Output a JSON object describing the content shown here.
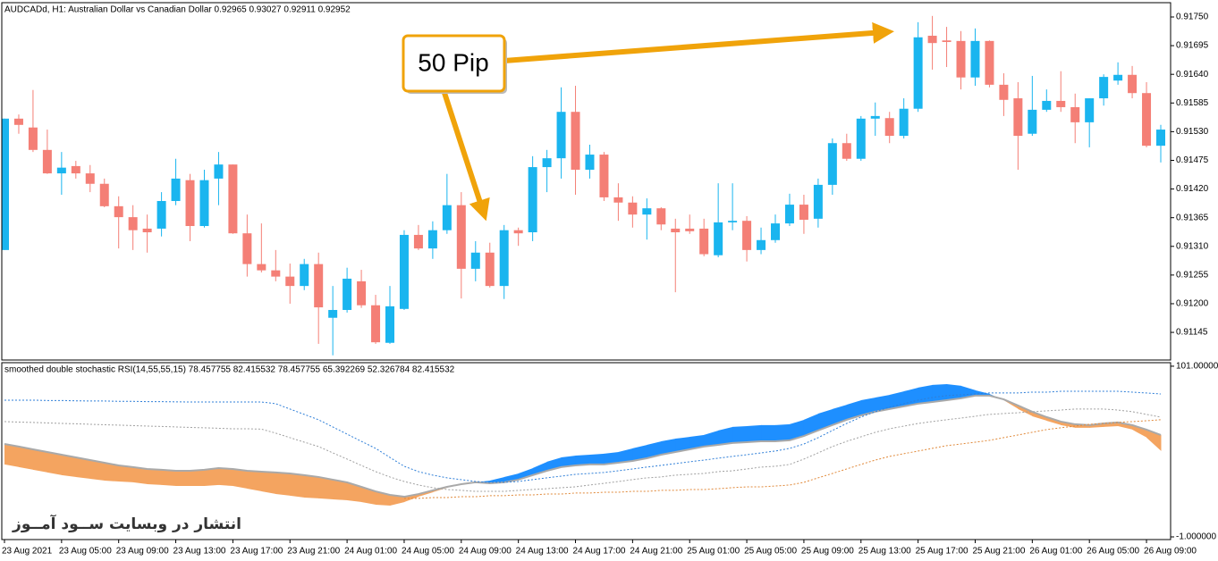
{
  "chart_data": [
    {
      "type": "candlestick",
      "title": "AUDCADd, H1:  Australian Dollar vs Canadian Dollar  0.92965 0.93027 0.92911 0.92952",
      "annotation": "50 Pip",
      "categories": [
        "23 Aug 2021",
        null,
        null,
        null,
        "23 Aug 05:00",
        null,
        null,
        null,
        "23 Aug 09:00",
        null,
        null,
        null,
        "23 Aug 13:00",
        null,
        null,
        null,
        "23 Aug 17:00",
        null,
        null,
        null,
        "23 Aug 21:00",
        null,
        null,
        null,
        "24 Aug 01:00",
        null,
        null,
        null,
        "24 Aug 05:00",
        null,
        null,
        null,
        "24 Aug 09:00",
        null,
        null,
        null,
        "24 Aug 13:00",
        null,
        null,
        null,
        "24 Aug 17:00",
        null,
        null,
        null,
        "24 Aug 21:00",
        null,
        null,
        null,
        "25 Aug 01:00",
        null,
        null,
        null,
        "25 Aug 05:00",
        null,
        null,
        null,
        "25 Aug 09:00",
        null,
        null,
        null,
        "25 Aug 13:00",
        null,
        null,
        null,
        "25 Aug 17:00",
        null,
        null,
        null,
        "25 Aug 21:00",
        null,
        null,
        null,
        "26 Aug 01:00",
        null,
        null,
        null,
        "26 Aug 05:00",
        null,
        null,
        null,
        "26 Aug 09:00",
        null
      ],
      "open": [
        0.91303,
        0.91555,
        0.91538,
        0.91495,
        0.9145,
        0.91464,
        0.9145,
        0.9143,
        0.91387,
        0.91366,
        0.91344,
        0.91344,
        0.91397,
        0.91437,
        0.91349,
        0.9144,
        0.91467,
        0.91335,
        0.91276,
        0.91264,
        0.91252,
        0.91234,
        0.91276,
        0.91173,
        0.91188,
        0.91243,
        0.91197,
        0.91125,
        0.9119,
        0.91332,
        0.91306,
        0.91341,
        0.91389,
        0.91267,
        0.91298,
        0.91234,
        0.91341,
        0.91337,
        0.91462,
        0.91479,
        0.91568,
        0.91457,
        0.91486,
        0.91404,
        0.91394,
        0.91371,
        0.91383,
        0.91344,
        0.91344,
        0.91344,
        0.91293,
        0.91356,
        0.91359,
        0.91303,
        0.91322,
        0.91354,
        0.9139,
        0.91363,
        0.91428,
        0.91508,
        0.91478,
        0.91555,
        0.91556,
        0.91522,
        0.91574,
        0.91714,
        0.91705,
        0.91704,
        0.91634,
        0.91704,
        0.9162,
        0.91594,
        0.91526,
        0.91572,
        0.91589,
        0.91577,
        0.91548,
        0.91594,
        0.91628,
        0.91639,
        0.91604,
        0.91503
      ],
      "high": [
        0.91555,
        0.91563,
        0.9161,
        0.91534,
        0.91491,
        0.91474,
        0.91466,
        0.9144,
        0.91406,
        0.91389,
        0.91371,
        0.91414,
        0.91478,
        0.91449,
        0.91457,
        0.91491,
        0.91467,
        0.91371,
        0.91354,
        0.91303,
        0.91277,
        0.91286,
        0.91298,
        0.91234,
        0.91269,
        0.91265,
        0.91217,
        0.91234,
        0.91341,
        0.91351,
        0.91358,
        0.91449,
        0.91414,
        0.9132,
        0.91317,
        0.91351,
        0.91346,
        0.91483,
        0.91495,
        0.91615,
        0.91618,
        0.91505,
        0.91491,
        0.91431,
        0.91406,
        0.91402,
        0.91385,
        0.91363,
        0.91371,
        0.91363,
        0.91431,
        0.91431,
        0.91368,
        0.91346,
        0.91371,
        0.91411,
        0.91409,
        0.9144,
        0.91517,
        0.91526,
        0.9156,
        0.91586,
        0.91568,
        0.91594,
        0.9174,
        0.91752,
        0.91731,
        0.91723,
        0.91728,
        0.91705,
        0.91642,
        0.91625,
        0.91637,
        0.91611,
        0.91646,
        0.91603,
        0.91594,
        0.9164,
        0.91663,
        0.91656,
        0.91625,
        0.91543
      ],
      "low": [
        0.91303,
        0.91526,
        0.91491,
        0.91449,
        0.91409,
        0.9144,
        0.91414,
        0.91385,
        0.91306,
        0.91303,
        0.91298,
        0.91329,
        0.91389,
        0.9132,
        0.91346,
        0.91389,
        0.91334,
        0.91252,
        0.9126,
        0.91243,
        0.912,
        0.91226,
        0.91123,
        0.91101,
        0.91183,
        0.91192,
        0.91123,
        0.91123,
        0.91188,
        0.91303,
        0.91286,
        0.91334,
        0.9121,
        0.91243,
        0.91231,
        0.91209,
        0.91311,
        0.9132,
        0.91414,
        0.9144,
        0.91409,
        0.9144,
        0.91397,
        0.91359,
        0.91346,
        0.91323,
        0.91341,
        0.91222,
        0.91334,
        0.91291,
        0.91289,
        0.91341,
        0.91281,
        0.91295,
        0.91317,
        0.91349,
        0.91334,
        0.91346,
        0.91409,
        0.91474,
        0.91474,
        0.91522,
        0.91508,
        0.91517,
        0.91568,
        0.91649,
        0.91654,
        0.91611,
        0.91618,
        0.91615,
        0.9156,
        0.91457,
        0.91522,
        0.91568,
        0.91568,
        0.91508,
        0.915,
        0.9158,
        0.9162,
        0.91594,
        0.915,
        0.91471
      ],
      "close": [
        0.91555,
        0.91543,
        0.91495,
        0.9145,
        0.91461,
        0.9145,
        0.9143,
        0.91387,
        0.91366,
        0.91341,
        0.91337,
        0.91397,
        0.9144,
        0.91349,
        0.91437,
        0.91467,
        0.91335,
        0.91276,
        0.91264,
        0.91252,
        0.91234,
        0.91276,
        0.91193,
        0.91188,
        0.91248,
        0.91197,
        0.91126,
        0.91195,
        0.91332,
        0.91306,
        0.91341,
        0.91389,
        0.91267,
        0.91298,
        0.91234,
        0.91341,
        0.91335,
        0.91462,
        0.91479,
        0.91568,
        0.91457,
        0.91486,
        0.91404,
        0.91394,
        0.91371,
        0.91383,
        0.91352,
        0.91337,
        0.91339,
        0.91295,
        0.91356,
        0.91359,
        0.91303,
        0.91322,
        0.91354,
        0.9139,
        0.91361,
        0.91428,
        0.91508,
        0.91478,
        0.91555,
        0.9156,
        0.91522,
        0.91574,
        0.91711,
        0.917,
        0.91702,
        0.91634,
        0.91704,
        0.9162,
        0.91591,
        0.91522,
        0.91572,
        0.91589,
        0.91577,
        0.91548,
        0.91594,
        0.91635,
        0.91639,
        0.91604,
        0.91503,
        0.91534
      ],
      "up_color": "#1ab5ef",
      "down_color": "#f47f76",
      "ylim": [
        0.91092,
        0.91774
      ],
      "yticks": [
        {
          "value": 0.9175,
          "label": "0.91750"
        },
        0.91695,
        {
          "value": 0.9164,
          "label": "0.91640"
        },
        0.91585,
        {
          "value": 0.9153,
          "label": "0.91530"
        },
        0.91475,
        {
          "value": 0.9142,
          "label": "0.91420"
        },
        0.91365,
        {
          "value": 0.9131,
          "label": "0.91310"
        },
        0.91255,
        {
          "value": 0.912,
          "label": "0.91200"
        },
        0.91145
      ]
    },
    {
      "type": "line",
      "title": "smoothed double stochastic RSI(14,55,55,15) 78.457755 82.415532 78.457755 65.392269 52.326784 82.415532",
      "watermark": "انتشار در وبسایت  ســود آمــوز",
      "ylim": [
        -2.6,
        103.1
      ],
      "yticks": [
        {
          "value": 101,
          "label": "101.000000"
        },
        {
          "value": -1,
          "label": "-1.000000"
        }
      ],
      "fill_colors": [
        "#1e8fff",
        "#f4a460"
      ],
      "series": [
        {
          "values": [
            42.3,
            40.7,
            39.1,
            37.5,
            35.9,
            34.8,
            33.7,
            32.6,
            32.1,
            31.6,
            30.5,
            30.0,
            29.4,
            29.4,
            29.4,
            30.0,
            29.4,
            27.8,
            26.2,
            24.6,
            23.6,
            22.5,
            22.0,
            21.4,
            20.9,
            19.8,
            18.2,
            17.7,
            19.8,
            23.0,
            25.7,
            28.4,
            30.5,
            31.6,
            32.6,
            34.8,
            36.9,
            40.1,
            43.9,
            46.5,
            47.6,
            48.1,
            48.7,
            49.7,
            51.9,
            54.0,
            56.1,
            57.7,
            58.8,
            59.9,
            62.6,
            64.7,
            65.2,
            65.8,
            65.8,
            66.3,
            69.0,
            72.7,
            75.4,
            78.0,
            80.7,
            82.3,
            83.9,
            86.0,
            88.2,
            89.8,
            90.3,
            89.3,
            86.6,
            84.4,
            80.7,
            75.4,
            71.1,
            68.4,
            65.8,
            64.2,
            64.2,
            64.7,
            65.2,
            63.1,
            58.3,
            50.3
          ]
        },
        {
          "color": "#a9a9a9",
          "values": [
            54.5,
            53.0,
            51.3,
            49.7,
            48.1,
            46.5,
            44.9,
            43.3,
            41.7,
            40.7,
            39.6,
            39.1,
            38.5,
            38.5,
            39.1,
            40.1,
            39.6,
            38.5,
            38.0,
            37.5,
            36.9,
            35.9,
            34.8,
            33.2,
            31.6,
            28.9,
            26.2,
            24.1,
            23.0,
            24.6,
            26.8,
            28.9,
            30.5,
            31.6,
            31.0,
            31.6,
            33.2,
            35.9,
            38.5,
            40.7,
            41.7,
            42.3,
            42.3,
            43.3,
            44.4,
            46.0,
            48.1,
            49.7,
            51.3,
            53.0,
            54.0,
            55.1,
            55.6,
            56.1,
            56.1,
            56.7,
            59.3,
            62.6,
            65.8,
            69.0,
            71.6,
            73.8,
            75.4,
            77.0,
            78.6,
            79.6,
            80.7,
            81.8,
            83.4,
            83.4,
            81.2,
            77.5,
            73.8,
            70.6,
            67.9,
            66.3,
            65.8,
            66.8,
            67.4,
            65.8,
            63.1,
            59.9
          ]
        },
        {
          "color": "#2f7fd8",
          "dash": true,
          "values": [
            80.7,
            80.7,
            80.7,
            80.5,
            80.5,
            80.3,
            80.2,
            80.2,
            80.0,
            80.0,
            79.8,
            79.8,
            79.7,
            79.6,
            79.6,
            79.6,
            79.6,
            79.6,
            79.6,
            78.6,
            75.4,
            72.2,
            69.0,
            64.7,
            60.4,
            56.1,
            51.9,
            46.5,
            41.2,
            38.0,
            35.9,
            34.3,
            33.2,
            32.1,
            31.6,
            31.6,
            32.1,
            33.2,
            34.3,
            35.3,
            36.4,
            36.9,
            37.5,
            38.5,
            39.6,
            40.7,
            41.7,
            42.8,
            43.9,
            44.9,
            46.0,
            47.1,
            48.1,
            49.2,
            50.3,
            51.9,
            54.5,
            58.3,
            62.6,
            66.8,
            70.6,
            73.8,
            76.5,
            78.6,
            80.7,
            82.3,
            83.4,
            83.9,
            84.4,
            85.0,
            85.0,
            85.0,
            85.5,
            85.5,
            86.0,
            86.0,
            86.0,
            86.0,
            86.0,
            85.5,
            85.0,
            84.4
          ]
        },
        {
          "color": "#a0a0a0",
          "dash": true,
          "values": [
            67.9,
            67.6,
            67.4,
            67.1,
            66.8,
            66.6,
            66.3,
            66.0,
            65.8,
            65.5,
            65.2,
            65.0,
            64.7,
            64.4,
            64.2,
            63.9,
            63.6,
            63.6,
            63.4,
            61.0,
            58.3,
            55.6,
            53.0,
            49.2,
            45.5,
            41.7,
            38.0,
            34.8,
            32.1,
            30.0,
            28.4,
            27.3,
            26.8,
            26.2,
            26.2,
            26.2,
            26.8,
            27.3,
            27.8,
            28.4,
            28.9,
            30.0,
            31.0,
            32.1,
            33.2,
            34.3,
            34.8,
            35.9,
            36.4,
            36.9,
            38.0,
            38.5,
            39.6,
            40.7,
            41.2,
            42.3,
            45.5,
            49.2,
            53.0,
            56.1,
            58.8,
            61.5,
            63.6,
            65.2,
            66.8,
            67.9,
            69.0,
            70.0,
            71.1,
            72.2,
            72.7,
            73.2,
            73.8,
            74.3,
            74.8,
            75.4,
            75.4,
            75.4,
            74.8,
            73.8,
            72.2,
            70.6
          ]
        },
        {
          "color": "#e0893a",
          "dash": true,
          "values": [
            null,
            null,
            null,
            null,
            null,
            null,
            null,
            null,
            null,
            null,
            null,
            null,
            null,
            null,
            null,
            null,
            null,
            null,
            null,
            null,
            null,
            null,
            null,
            null,
            null,
            null,
            null,
            null,
            22.0,
            22.0,
            22.5,
            22.5,
            23.0,
            23.0,
            23.6,
            23.6,
            24.1,
            24.1,
            24.6,
            24.6,
            25.2,
            25.2,
            25.7,
            25.7,
            26.2,
            26.2,
            26.8,
            26.8,
            27.3,
            27.3,
            27.8,
            28.4,
            28.9,
            28.9,
            29.4,
            30.0,
            31.6,
            34.3,
            36.9,
            39.6,
            42.3,
            44.9,
            47.1,
            48.7,
            50.3,
            51.9,
            53.5,
            54.5,
            55.6,
            56.7,
            58.3,
            59.9,
            61.5,
            63.1,
            64.2,
            65.2,
            66.3,
            66.8,
            67.4,
            67.9,
            68.4,
            69.0
          ]
        }
      ]
    }
  ]
}
